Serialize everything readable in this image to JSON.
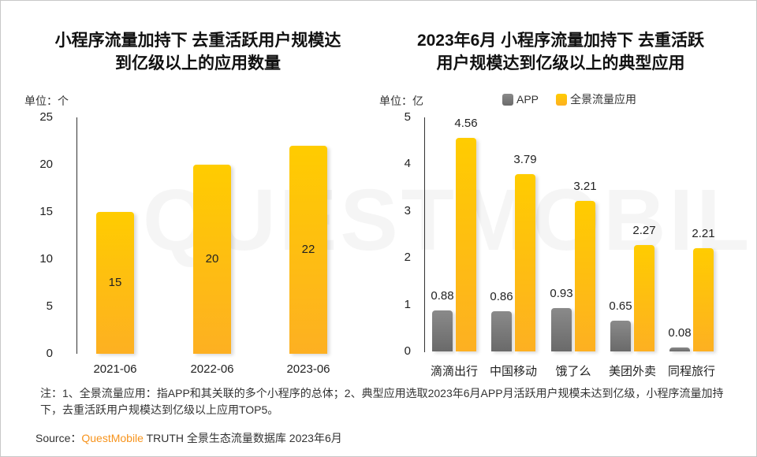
{
  "chart_data": [
    {
      "type": "bar",
      "title": "小程序流量加持下 去重活跃用户规模达到亿级以上的应用数量",
      "unit_label": "单位：个",
      "categories": [
        "2021-06",
        "2022-06",
        "2023-06"
      ],
      "values": [
        15,
        20,
        22
      ],
      "ylim": [
        0,
        25
      ],
      "yticks": [
        0,
        5,
        10,
        15,
        20,
        25
      ],
      "color": "#ffc000"
    },
    {
      "type": "bar",
      "title": "2023年6月 小程序流量加持下 去重活跃用户规模达到亿级以上的典型应用",
      "unit_label": "单位：亿",
      "categories": [
        "滴滴出行",
        "中国移动",
        "饿了么",
        "美团外卖",
        "同程旅行"
      ],
      "series": [
        {
          "name": "APP",
          "values": [
            0.88,
            0.86,
            0.93,
            0.65,
            0.08
          ],
          "color": "#7f7f7f"
        },
        {
          "name": "全景流量应用",
          "values": [
            4.56,
            3.79,
            3.21,
            2.27,
            2.21
          ],
          "color": "#ffc000"
        }
      ],
      "ylim": [
        0,
        5
      ],
      "yticks": [
        0,
        1,
        2,
        3,
        4,
        5
      ],
      "legend_position": "top"
    }
  ],
  "left_title_lines": [
    "小程序流量加持下 去重活跃用户规模达",
    "到亿级以上的应用数量"
  ],
  "right_title_lines": [
    "2023年6月 小程序流量加持下 去重活跃",
    "用户规模达到亿级以上的典型应用"
  ],
  "note": "注：1、全景流量应用：指APP和其关联的多个小程序的总体；2、典型应用选取2023年6月APP月活跃用户规模未达到亿级，小程序流量加持下，去重活跃用户规模达到亿级以上应用TOP5。",
  "source": {
    "label": "Source：",
    "brand": "QuestMobile",
    "rest": " TRUTH 全景生态流量数据库 2023年6月"
  },
  "watermark": "QUESTMOBILE"
}
